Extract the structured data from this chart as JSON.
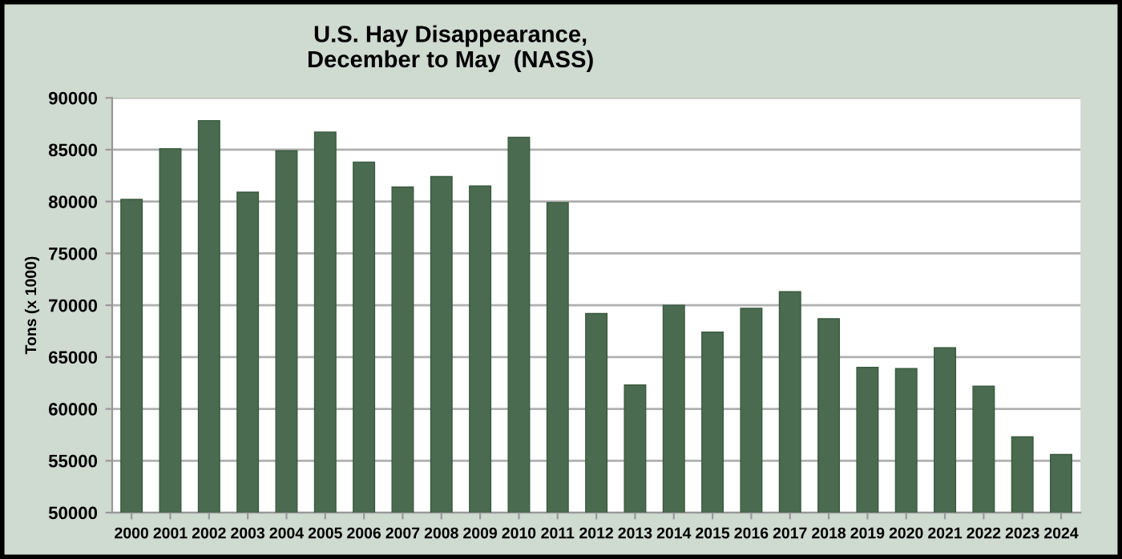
{
  "chart_data": {
    "type": "bar",
    "title": "U.S. Hay Disappearance,\nDecember to May  (NASS)",
    "ylabel": "Tons (x 1000)",
    "categories": [
      "2000",
      "2001",
      "2002",
      "2003",
      "2004",
      "2005",
      "2006",
      "2007",
      "2008",
      "2009",
      "2010",
      "2011",
      "2012",
      "2013",
      "2014",
      "2015",
      "2016",
      "2017",
      "2018",
      "2019",
      "2020",
      "2021",
      "2022",
      "2023",
      "2024"
    ],
    "values": [
      80200,
      85100,
      87800,
      80900,
      84900,
      86700,
      83800,
      81400,
      82400,
      81500,
      86200,
      79900,
      69200,
      62300,
      70000,
      67400,
      69700,
      71300,
      68700,
      64000,
      63900,
      65900,
      62200,
      57300,
      55600
    ],
    "color": "#4a6b4f",
    "ylim": [
      50000,
      90000
    ],
    "yticks": [
      50000,
      55000,
      60000,
      65000,
      70000,
      75000,
      80000,
      85000,
      90000
    ],
    "grid": "y",
    "legend": false
  }
}
